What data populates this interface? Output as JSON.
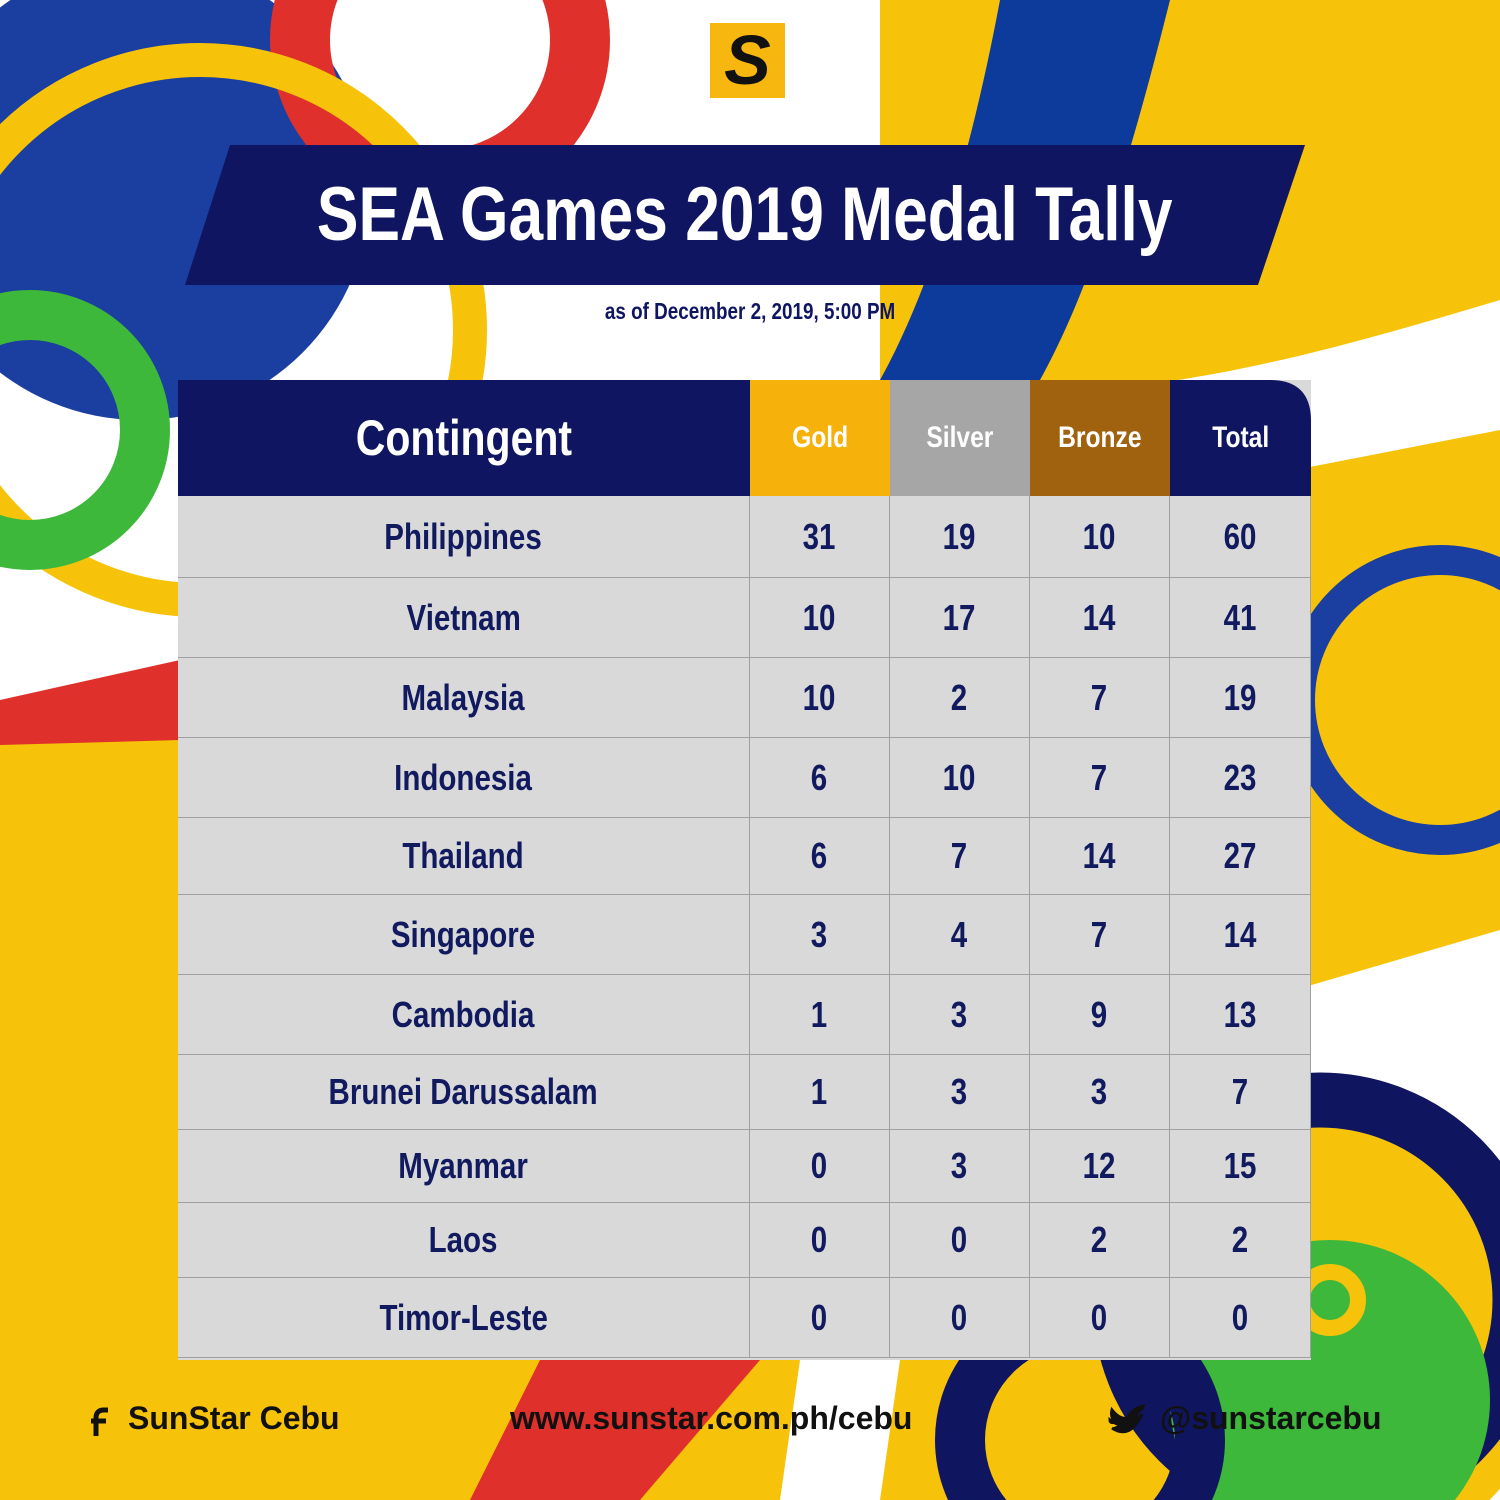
{
  "logo": "S",
  "header": {
    "title": "SEA Games 2019 Medal Tally",
    "subtitle": "as of December 2, 2019, 5:00 PM"
  },
  "table": {
    "columns": [
      "Contingent",
      "Gold",
      "Silver",
      "Bronze",
      "Total"
    ],
    "rows": [
      [
        "Philippines",
        31,
        19,
        10,
        60
      ],
      [
        "Vietnam",
        10,
        17,
        14,
        41
      ],
      [
        "Malaysia",
        10,
        2,
        7,
        19
      ],
      [
        "Indonesia",
        6,
        10,
        7,
        23
      ],
      [
        "Thailand",
        6,
        7,
        14,
        27
      ],
      [
        "Singapore",
        3,
        4,
        7,
        14
      ],
      [
        "Cambodia",
        1,
        3,
        9,
        13
      ],
      [
        "Brunei Darussalam",
        1,
        3,
        3,
        7
      ],
      [
        "Myanmar",
        0,
        3,
        12,
        15
      ],
      [
        "Laos",
        0,
        0,
        2,
        2
      ],
      [
        "Timor-Leste",
        0,
        0,
        0,
        0
      ]
    ]
  },
  "footer": {
    "facebook": "SunStar Cebu",
    "website": "www.sunstar.com.ph/cebu",
    "twitter": "@sunstarcebu"
  }
}
